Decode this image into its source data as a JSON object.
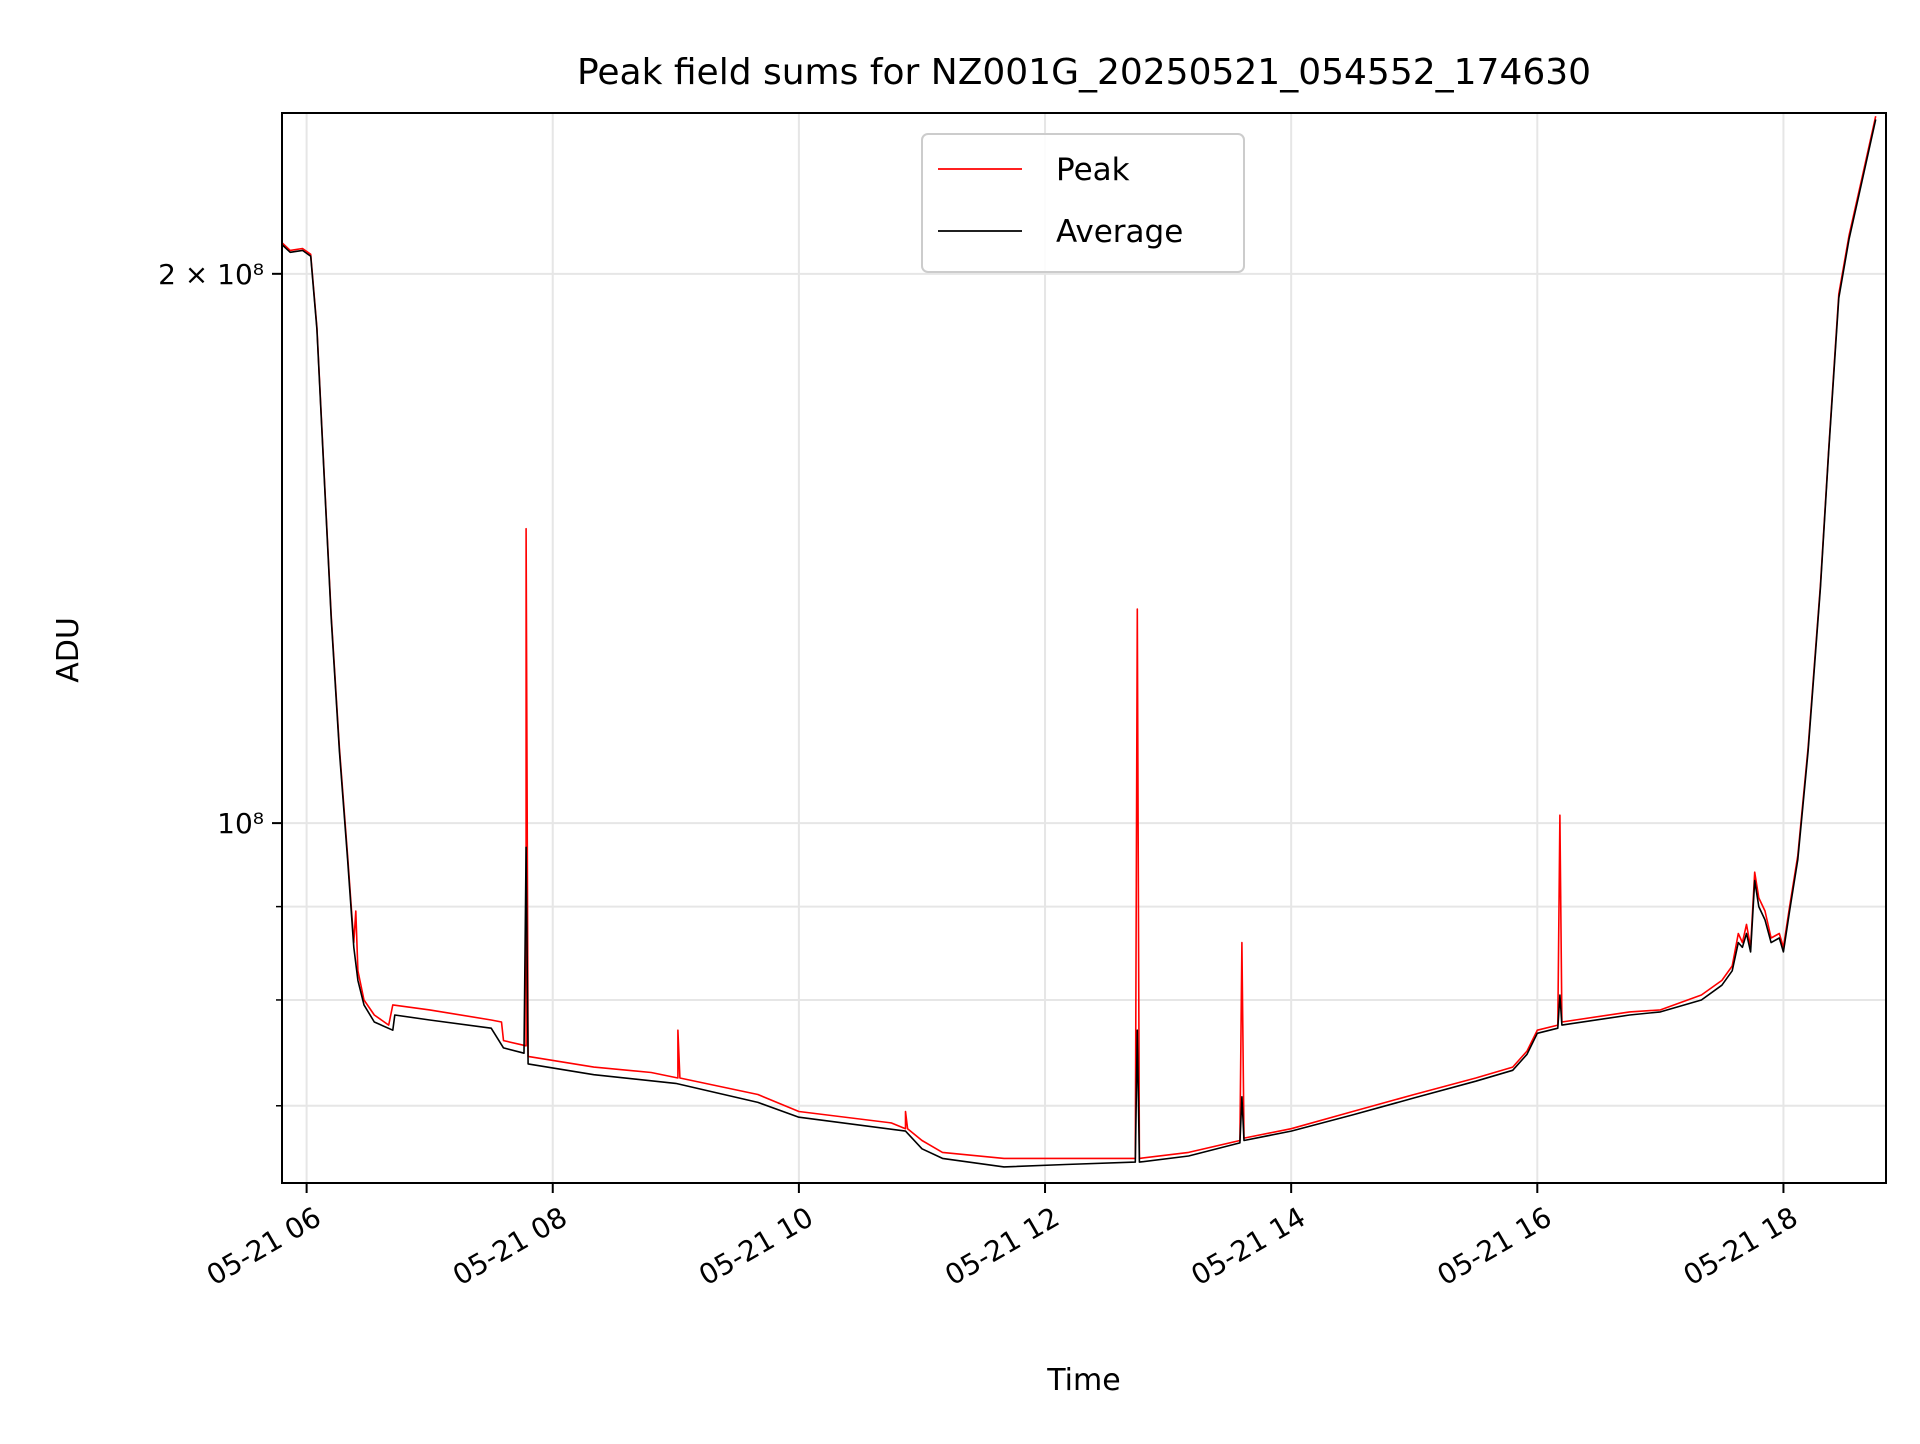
{
  "chart_data": {
    "type": "line",
    "title": "Peak field sums for NZ001G_20250521_054552_174630",
    "xlabel": "Time",
    "ylabel": "ADU",
    "xlim": [
      "2025-05-21 05:48",
      "2025-05-21 18:50"
    ],
    "ylim": [
      63500000,
      245000000
    ],
    "yscale": "log",
    "grid": true,
    "legend_position": "upper center",
    "x_ticks": [
      {
        "t": "2025-05-21 06:00",
        "label": "05-21 06"
      },
      {
        "t": "2025-05-21 08:00",
        "label": "05-21 08"
      },
      {
        "t": "2025-05-21 10:00",
        "label": "05-21 10"
      },
      {
        "t": "2025-05-21 12:00",
        "label": "05-21 12"
      },
      {
        "t": "2025-05-21 14:00",
        "label": "05-21 14"
      },
      {
        "t": "2025-05-21 16:00",
        "label": "05-21 16"
      },
      {
        "t": "2025-05-21 18:00",
        "label": "05-21 18"
      }
    ],
    "y_major_ticks": [
      {
        "value": 100000000,
        "label": "10⁸"
      },
      {
        "value": 200000000,
        "label": "2 × 10⁸"
      }
    ],
    "y_minor_ticks": [
      70000000,
      80000000,
      90000000
    ],
    "series": [
      {
        "name": "Peak",
        "color": "#ff0000",
        "points": [
          [
            "2025-05-21 05:48",
            208000000
          ],
          [
            "2025-05-21 05:52",
            206000000
          ],
          [
            "2025-05-21 05:58",
            206500000
          ],
          [
            "2025-05-21 06:02",
            205000000
          ],
          [
            "2025-05-21 06:05",
            187000000
          ],
          [
            "2025-05-21 06:08",
            160000000
          ],
          [
            "2025-05-21 06:12",
            130000000
          ],
          [
            "2025-05-21 06:16",
            110000000
          ],
          [
            "2025-05-21 06:20",
            96000000
          ],
          [
            "2025-05-21 06:23",
            86000000
          ],
          [
            "2025-05-21 06:24",
            89500000
          ],
          [
            "2025-05-21 06:25",
            83000000
          ],
          [
            "2025-05-21 06:28",
            80000000
          ],
          [
            "2025-05-21 06:33",
            78500000
          ],
          [
            "2025-05-21 06:40",
            77500000
          ],
          [
            "2025-05-21 06:42",
            79500000
          ],
          [
            "2025-05-21 07:00",
            79000000
          ],
          [
            "2025-05-21 07:30",
            78000000
          ],
          [
            "2025-05-21 07:35",
            77800000
          ],
          [
            "2025-05-21 07:36",
            76000000
          ],
          [
            "2025-05-21 07:47",
            75500000
          ],
          [
            "2025-05-21 07:47",
            145000000
          ],
          [
            "2025-05-21 07:48",
            74500000
          ],
          [
            "2025-05-21 08:20",
            73500000
          ],
          [
            "2025-05-21 08:48",
            73000000
          ],
          [
            "2025-05-21 09:01",
            72500000
          ],
          [
            "2025-05-21 09:01",
            77000000
          ],
          [
            "2025-05-21 09:02",
            72500000
          ],
          [
            "2025-05-21 09:40",
            71000000
          ],
          [
            "2025-05-21 10:00",
            69500000
          ],
          [
            "2025-05-21 10:45",
            68500000
          ],
          [
            "2025-05-21 10:52",
            68000000
          ],
          [
            "2025-05-21 10:52",
            69500000
          ],
          [
            "2025-05-21 10:53",
            68000000
          ],
          [
            "2025-05-21 11:00",
            67000000
          ],
          [
            "2025-05-21 11:10",
            66000000
          ],
          [
            "2025-05-21 11:40",
            65500000
          ],
          [
            "2025-05-21 12:10",
            65500000
          ],
          [
            "2025-05-21 12:44",
            65500000
          ],
          [
            "2025-05-21 12:45",
            131000000
          ],
          [
            "2025-05-21 12:46",
            65500000
          ],
          [
            "2025-05-21 13:10",
            66000000
          ],
          [
            "2025-05-21 13:35",
            67000000
          ],
          [
            "2025-05-21 13:36",
            86000000
          ],
          [
            "2025-05-21 13:37",
            67200000
          ],
          [
            "2025-05-21 14:00",
            68000000
          ],
          [
            "2025-05-21 14:30",
            69500000
          ],
          [
            "2025-05-21 15:00",
            71000000
          ],
          [
            "2025-05-21 15:30",
            72500000
          ],
          [
            "2025-05-21 15:48",
            73500000
          ],
          [
            "2025-05-21 15:55",
            75000000
          ],
          [
            "2025-05-21 16:00",
            77000000
          ],
          [
            "2025-05-21 16:10",
            77500000
          ],
          [
            "2025-05-21 16:11",
            101000000
          ],
          [
            "2025-05-21 16:12",
            77800000
          ],
          [
            "2025-05-21 16:45",
            78800000
          ],
          [
            "2025-05-21 17:00",
            79000000
          ],
          [
            "2025-05-21 17:20",
            80500000
          ],
          [
            "2025-05-21 17:30",
            82000000
          ],
          [
            "2025-05-21 17:35",
            83500000
          ],
          [
            "2025-05-21 17:38",
            87000000
          ],
          [
            "2025-05-21 17:40",
            86000000
          ],
          [
            "2025-05-21 17:42",
            88000000
          ],
          [
            "2025-05-21 17:44",
            85500000
          ],
          [
            "2025-05-21 17:46",
            94000000
          ],
          [
            "2025-05-21 17:48",
            91000000
          ],
          [
            "2025-05-21 17:51",
            89500000
          ],
          [
            "2025-05-21 17:54",
            86500000
          ],
          [
            "2025-05-21 17:58",
            87000000
          ],
          [
            "2025-05-21 18:00",
            85500000
          ],
          [
            "2025-05-21 18:03",
            90000000
          ],
          [
            "2025-05-21 18:07",
            96000000
          ],
          [
            "2025-05-21 18:12",
            110000000
          ],
          [
            "2025-05-21 18:18",
            135000000
          ],
          [
            "2025-05-21 18:22",
            160000000
          ],
          [
            "2025-05-21 18:27",
            195000000
          ],
          [
            "2025-05-21 18:32",
            210000000
          ],
          [
            "2025-05-21 18:38",
            225000000
          ],
          [
            "2025-05-21 18:45",
            244000000
          ]
        ]
      },
      {
        "name": "Average",
        "color": "#000000",
        "points": [
          [
            "2025-05-21 05:48",
            207500000
          ],
          [
            "2025-05-21 05:52",
            205500000
          ],
          [
            "2025-05-21 05:58",
            206000000
          ],
          [
            "2025-05-21 06:02",
            204500000
          ],
          [
            "2025-05-21 06:05",
            186500000
          ],
          [
            "2025-05-21 06:08",
            159500000
          ],
          [
            "2025-05-21 06:12",
            129500000
          ],
          [
            "2025-05-21 06:16",
            109500000
          ],
          [
            "2025-05-21 06:20",
            95500000
          ],
          [
            "2025-05-21 06:23",
            85500000
          ],
          [
            "2025-05-21 06:25",
            82000000
          ],
          [
            "2025-05-21 06:28",
            79500000
          ],
          [
            "2025-05-21 06:33",
            77800000
          ],
          [
            "2025-05-21 06:42",
            77000000
          ],
          [
            "2025-05-21 06:43",
            78500000
          ],
          [
            "2025-05-21 07:00",
            78000000
          ],
          [
            "2025-05-21 07:30",
            77200000
          ],
          [
            "2025-05-21 07:36",
            75300000
          ],
          [
            "2025-05-21 07:46",
            74800000
          ],
          [
            "2025-05-21 07:47",
            97000000
          ],
          [
            "2025-05-21 07:48",
            73800000
          ],
          [
            "2025-05-21 08:20",
            72800000
          ],
          [
            "2025-05-21 09:00",
            72000000
          ],
          [
            "2025-05-21 09:40",
            70300000
          ],
          [
            "2025-05-21 10:00",
            69000000
          ],
          [
            "2025-05-21 10:52",
            67800000
          ],
          [
            "2025-05-21 11:00",
            66300000
          ],
          [
            "2025-05-21 11:10",
            65500000
          ],
          [
            "2025-05-21 11:40",
            64800000
          ],
          [
            "2025-05-21 12:10",
            65000000
          ],
          [
            "2025-05-21 12:44",
            65200000
          ],
          [
            "2025-05-21 12:45",
            77000000
          ],
          [
            "2025-05-21 12:46",
            65200000
          ],
          [
            "2025-05-21 13:10",
            65700000
          ],
          [
            "2025-05-21 13:35",
            66800000
          ],
          [
            "2025-05-21 13:36",
            70800000
          ],
          [
            "2025-05-21 13:37",
            67000000
          ],
          [
            "2025-05-21 14:00",
            67800000
          ],
          [
            "2025-05-21 14:30",
            69200000
          ],
          [
            "2025-05-21 15:00",
            70700000
          ],
          [
            "2025-05-21 15:30",
            72200000
          ],
          [
            "2025-05-21 15:48",
            73200000
          ],
          [
            "2025-05-21 15:55",
            74700000
          ],
          [
            "2025-05-21 16:00",
            76700000
          ],
          [
            "2025-05-21 16:10",
            77200000
          ],
          [
            "2025-05-21 16:11",
            80500000
          ],
          [
            "2025-05-21 16:12",
            77500000
          ],
          [
            "2025-05-21 16:45",
            78500000
          ],
          [
            "2025-05-21 17:00",
            78800000
          ],
          [
            "2025-05-21 17:20",
            80000000
          ],
          [
            "2025-05-21 17:30",
            81500000
          ],
          [
            "2025-05-21 17:35",
            83000000
          ],
          [
            "2025-05-21 17:38",
            86000000
          ],
          [
            "2025-05-21 17:40",
            85500000
          ],
          [
            "2025-05-21 17:42",
            87000000
          ],
          [
            "2025-05-21 17:44",
            85000000
          ],
          [
            "2025-05-21 17:46",
            93000000
          ],
          [
            "2025-05-21 17:48",
            90000000
          ],
          [
            "2025-05-21 17:51",
            88500000
          ],
          [
            "2025-05-21 17:54",
            86000000
          ],
          [
            "2025-05-21 17:58",
            86500000
          ],
          [
            "2025-05-21 18:00",
            85000000
          ],
          [
            "2025-05-21 18:03",
            89500000
          ],
          [
            "2025-05-21 18:07",
            95500000
          ],
          [
            "2025-05-21 18:12",
            109500000
          ],
          [
            "2025-05-21 18:18",
            134500000
          ],
          [
            "2025-05-21 18:22",
            159500000
          ],
          [
            "2025-05-21 18:27",
            194000000
          ],
          [
            "2025-05-21 18:32",
            209000000
          ],
          [
            "2025-05-21 18:38",
            224000000
          ],
          [
            "2025-05-21 18:45",
            243000000
          ]
        ]
      }
    ]
  }
}
